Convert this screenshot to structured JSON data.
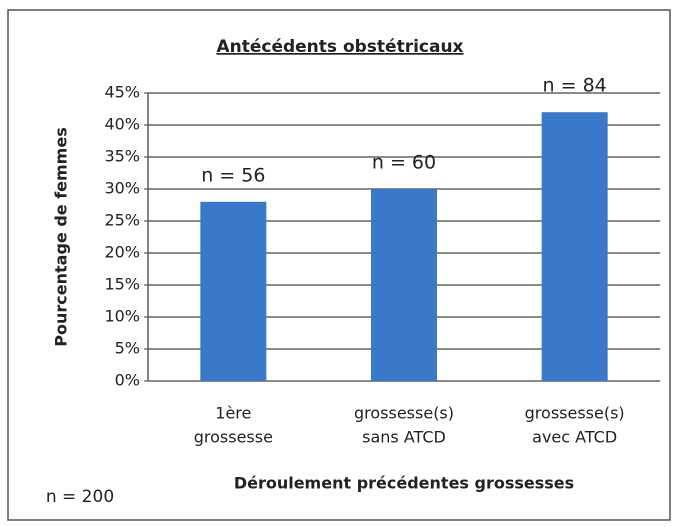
{
  "chart_data": {
    "type": "bar",
    "title": "Antécédents obstétricaux",
    "categories": [
      [
        "1ère",
        "grossesse"
      ],
      [
        "grossesse(s)",
        "sans ATCD"
      ],
      [
        "grossesse(s)",
        "avec ATCD"
      ]
    ],
    "values": [
      28,
      30,
      42
    ],
    "bar_labels": [
      "n = 56",
      "n = 60",
      "n = 84"
    ],
    "color": "#3a78c9",
    "ylabel": "Pourcentage de femmes",
    "xlabel": "Déroulement précédentes grossesses",
    "annotation": "n = 200",
    "ylim": [
      0,
      45
    ],
    "yticks": [
      {
        "value": 0,
        "label": "0%"
      },
      {
        "value": 5,
        "label": "5%"
      },
      {
        "value": 10,
        "label": "10%"
      },
      {
        "value": 15,
        "label": "15%"
      },
      {
        "value": 20,
        "label": "20%"
      },
      {
        "value": 25,
        "label": "25%"
      },
      {
        "value": 30,
        "label": "30%"
      },
      {
        "value": 35,
        "label": "35%"
      },
      {
        "value": 40,
        "label": "40%"
      },
      {
        "value": 45,
        "label": "45%"
      }
    ],
    "grid": true
  }
}
